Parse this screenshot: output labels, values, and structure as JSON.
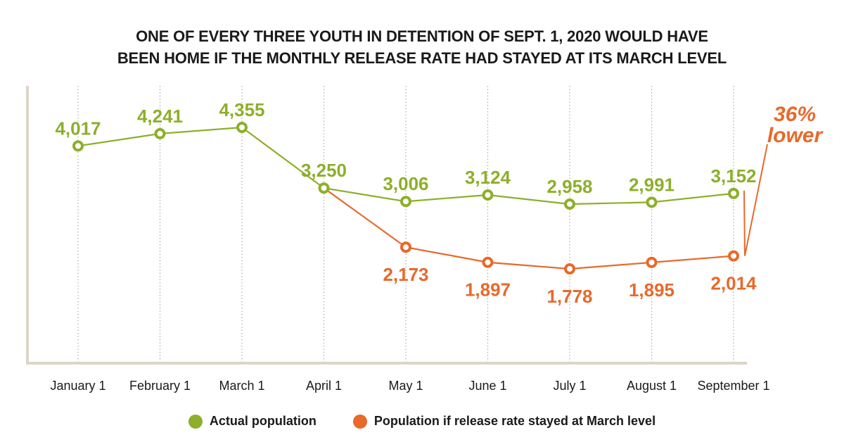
{
  "chart_data": {
    "type": "line",
    "title_lines": [
      "ONE OF EVERY THREE YOUTH IN DETENTION OF SEPT. 1, 2020 WOULD HAVE",
      "BEEN HOME IF THE MONTHLY RELEASE RATE HAD STAYED AT ITS MARCH LEVEL"
    ],
    "categories": [
      "January 1",
      "February 1",
      "March 1",
      "April 1",
      "May 1",
      "June 1",
      "July 1",
      "August 1",
      "September 1"
    ],
    "series": [
      {
        "name": "Actual population",
        "color": "#8daf2a",
        "values": [
          4017,
          4241,
          4355,
          3250,
          3006,
          3124,
          2958,
          2991,
          3152
        ],
        "labels": [
          "4,017",
          "4,241",
          "4,355",
          "3,250",
          "3,006",
          "3,124",
          "2,958",
          "2,991",
          "3,152"
        ],
        "label_position": "above"
      },
      {
        "name": "Population if release rate stayed at March level",
        "color": "#e8692a",
        "values": [
          null,
          null,
          null,
          3250,
          2173,
          1897,
          1778,
          1895,
          2014
        ],
        "labels": [
          null,
          null,
          null,
          null,
          "2,173",
          "1,897",
          "1,778",
          "1,895",
          "2,014"
        ],
        "label_position": "below"
      }
    ],
    "annotation": {
      "lines": [
        "36%",
        "lower"
      ],
      "color": "#e8692a",
      "target": "September 1"
    },
    "xlabel": "",
    "ylabel": "",
    "ylim": [
      0,
      4500
    ],
    "grid": "vertical-dotted",
    "legend": "bottom-center",
    "axis_color": "#ddd5c7"
  }
}
